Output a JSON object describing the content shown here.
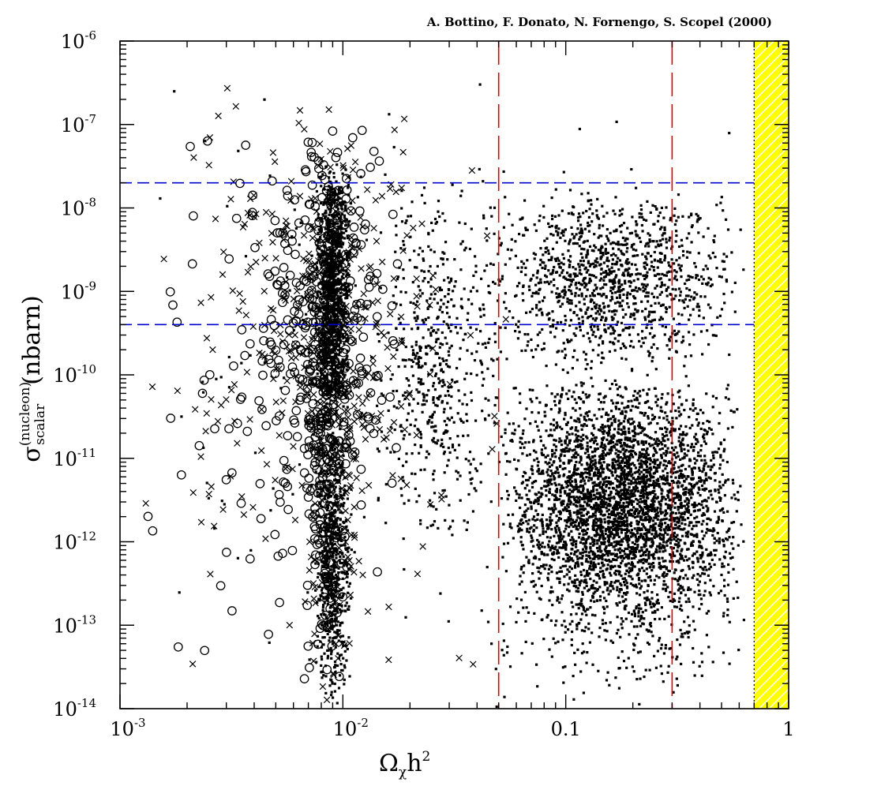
{
  "credit": "A. Bottino, F. Donato, N. Fornengo, S. Scopel (2000)",
  "chart_data": {
    "type": "scatter",
    "title": "",
    "xlabel": {
      "main": "Ω",
      "sub": "χ",
      "rest": "h",
      "sup": "2"
    },
    "ylabel": {
      "symbol": "σ",
      "sup": "(nucleon)",
      "sub": "scalar",
      "unit": "(nbarn)"
    },
    "x_scale": "log",
    "y_scale": "log",
    "xlim": [
      0.001,
      1
    ],
    "ylim": [
      1e-14,
      1e-06
    ],
    "x_ticks": [
      {
        "value": 0.001,
        "base": "10",
        "exp": "-3"
      },
      {
        "value": 0.01,
        "base": "10",
        "exp": "-2"
      },
      {
        "value": 0.1,
        "base": "0.1",
        "exp": ""
      },
      {
        "value": 1,
        "base": "1",
        "exp": ""
      }
    ],
    "y_ticks": [
      {
        "value": 1e-14,
        "base": "10",
        "exp": "-14"
      },
      {
        "value": 1e-13,
        "base": "10",
        "exp": "-13"
      },
      {
        "value": 1e-12,
        "base": "10",
        "exp": "-12"
      },
      {
        "value": 1e-11,
        "base": "10",
        "exp": "-11"
      },
      {
        "value": 1e-10,
        "base": "10",
        "exp": "-10"
      },
      {
        "value": 1e-09,
        "base": "10",
        "exp": "-9"
      },
      {
        "value": 1e-08,
        "base": "10",
        "exp": "-8"
      },
      {
        "value": 1e-07,
        "base": "10",
        "exp": "-7"
      },
      {
        "value": 1e-06,
        "base": "10",
        "exp": "-6"
      }
    ],
    "reference_lines": [
      {
        "orientation": "horizontal",
        "value": 2e-08,
        "color": "#0000cc",
        "style": "dashed"
      },
      {
        "orientation": "horizontal",
        "value": 4e-10,
        "color": "#0000cc",
        "style": "dashed"
      },
      {
        "orientation": "vertical",
        "value": 0.05,
        "color": "#dd0000",
        "style": "long-dashed"
      },
      {
        "orientation": "vertical",
        "value": 0.3,
        "color": "#dd0000",
        "style": "long-dashed"
      }
    ],
    "excluded_region": {
      "x_range": [
        0.7,
        1
      ],
      "fill": "#ffff00",
      "hatch": "#ffffff"
    },
    "series": [
      {
        "marker": "open-circle",
        "clusters": [
          {
            "x_range": [
              0.0065,
              0.011
            ],
            "y_range": [
              1e-14,
              1e-07
            ],
            "count": 260
          },
          {
            "x_range": [
              0.003,
              0.02
            ],
            "y_range": [
              1e-12,
              1.3e-07
            ],
            "count": 230
          },
          {
            "x_range": [
              0.0012,
              0.02
            ],
            "y_range": [
              1e-14,
              1.3e-07
            ],
            "count": 75
          }
        ]
      },
      {
        "marker": "cross",
        "clusters": [
          {
            "x_range": [
              0.0065,
              0.013
            ],
            "y_range": [
              1e-14,
              1e-07
            ],
            "count": 230
          },
          {
            "x_range": [
              0.002,
              0.03
            ],
            "y_range": [
              1e-12,
              3e-07
            ],
            "count": 220
          },
          {
            "x_range": [
              0.001,
              0.08
            ],
            "y_range": [
              1e-14,
              3e-07
            ],
            "count": 120
          }
        ]
      },
      {
        "marker": "filled-square",
        "clusters": [
          {
            "x_range": [
              0.0075,
              0.011
            ],
            "y_range": [
              3e-11,
              4e-08
            ],
            "count": 1100
          },
          {
            "x_range": [
              0.0075,
              0.011
            ],
            "y_range": [
              1e-14,
              3e-11
            ],
            "count": 650
          },
          {
            "x_range": [
              0.05,
              0.65
            ],
            "y_range": [
              1e-13,
              1e-10
            ],
            "count": 3600
          },
          {
            "x_range": [
              0.04,
              0.65
            ],
            "y_range": [
              1e-10,
              2e-08
            ],
            "count": 1200
          },
          {
            "x_range": [
              0.015,
              0.05
            ],
            "y_range": [
              1e-12,
              2e-08
            ],
            "count": 500
          },
          {
            "x_range": [
              0.04,
              0.7
            ],
            "y_range": [
              1e-14,
              1e-12
            ],
            "count": 300
          },
          {
            "x_range": [
              0.001,
              0.7
            ],
            "y_range": [
              1e-14,
              1e-06
            ],
            "count": 250
          }
        ]
      }
    ]
  }
}
